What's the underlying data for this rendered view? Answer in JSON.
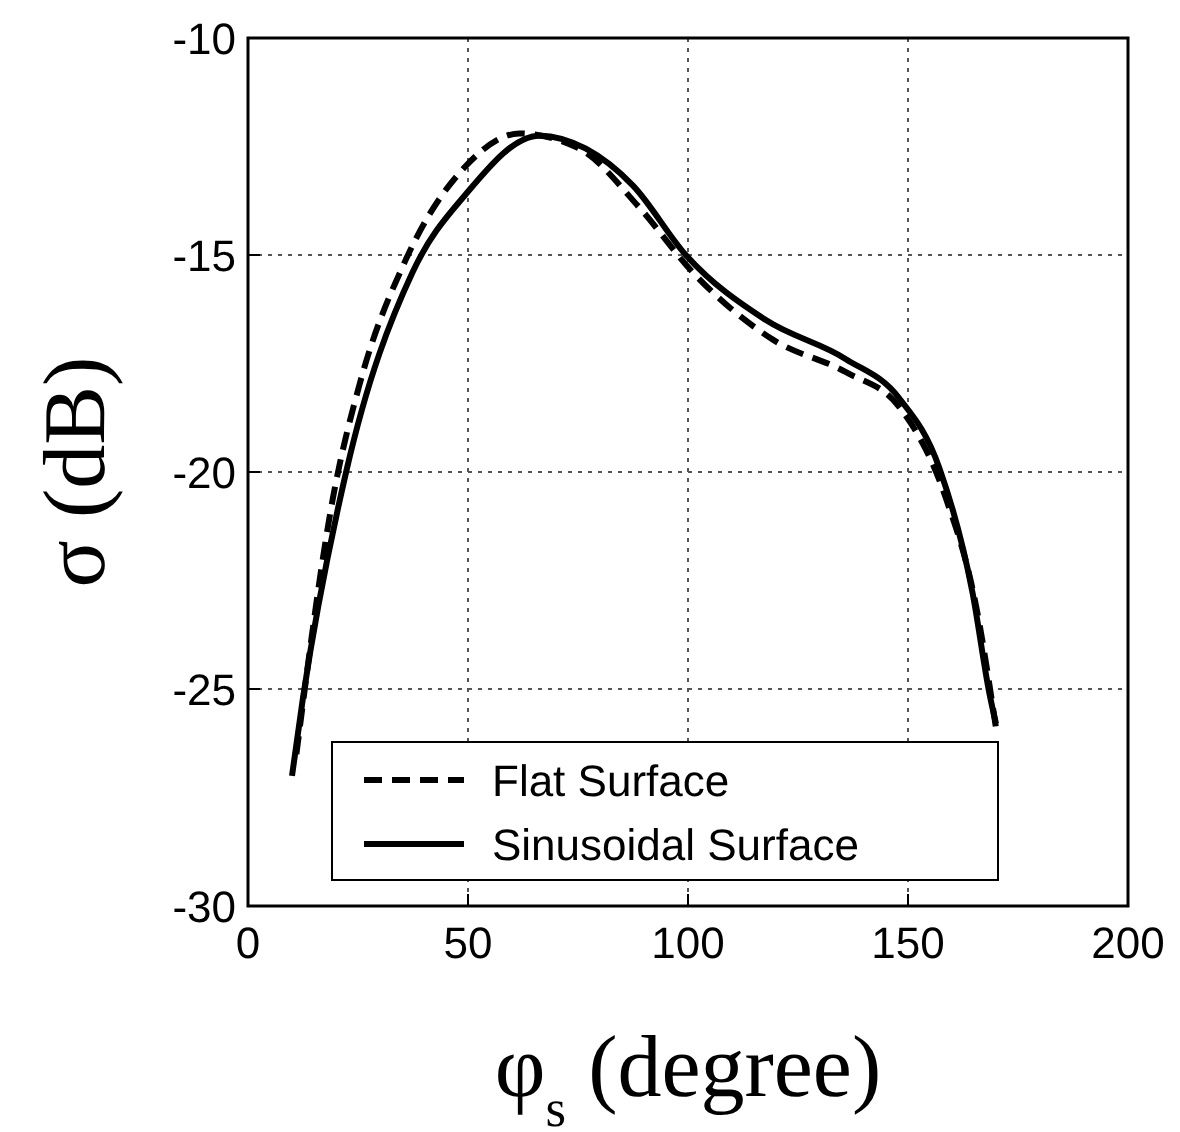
{
  "chart_data": {
    "type": "line",
    "xlabel": "φ$_{s}$ (degree)",
    "ylabel": "σ (dB)",
    "xlim": [
      0,
      200
    ],
    "xticks": [
      0,
      50,
      100,
      150,
      200
    ],
    "ylim": [
      -30,
      -10
    ],
    "yticks": [
      -30,
      -25,
      -20,
      -15,
      -10
    ],
    "grid": true,
    "legend": "bottom",
    "series": [
      {
        "name": "Flat Surface",
        "color": "#000000",
        "line_style": "dashed",
        "x": [
          11,
          19.3,
          25.3,
          35.9,
          49.5,
          61.7,
          75.3,
          88.9,
          101.1,
          119.3,
          135.9,
          148,
          158.6,
          165.5,
          170
        ],
        "values": [
          -26.5,
          -20.6,
          -18.0,
          -15.1,
          -12.95,
          -12.2,
          -12.55,
          -13.9,
          -15.4,
          -16.95,
          -17.7,
          -18.5,
          -20.6,
          -23.1,
          -25.9
        ]
      },
      {
        "name": "Sinusoidal Surface",
        "color": "#000000",
        "line_style": "solid",
        "x": [
          10,
          12.5,
          22.3,
          37.4,
          49.5,
          66.2,
          76.8,
          87.5,
          99.5,
          117.7,
          135.9,
          148,
          157.1,
          164.7,
          168.5,
          170
        ],
        "values": [
          -27,
          -25.2,
          -20.0,
          -15.4,
          -13.6,
          -12.25,
          -12.55,
          -13.4,
          -15.0,
          -16.5,
          -17.4,
          -18.3,
          -19.9,
          -22.8,
          -25.1,
          -25.8
        ]
      }
    ]
  }
}
